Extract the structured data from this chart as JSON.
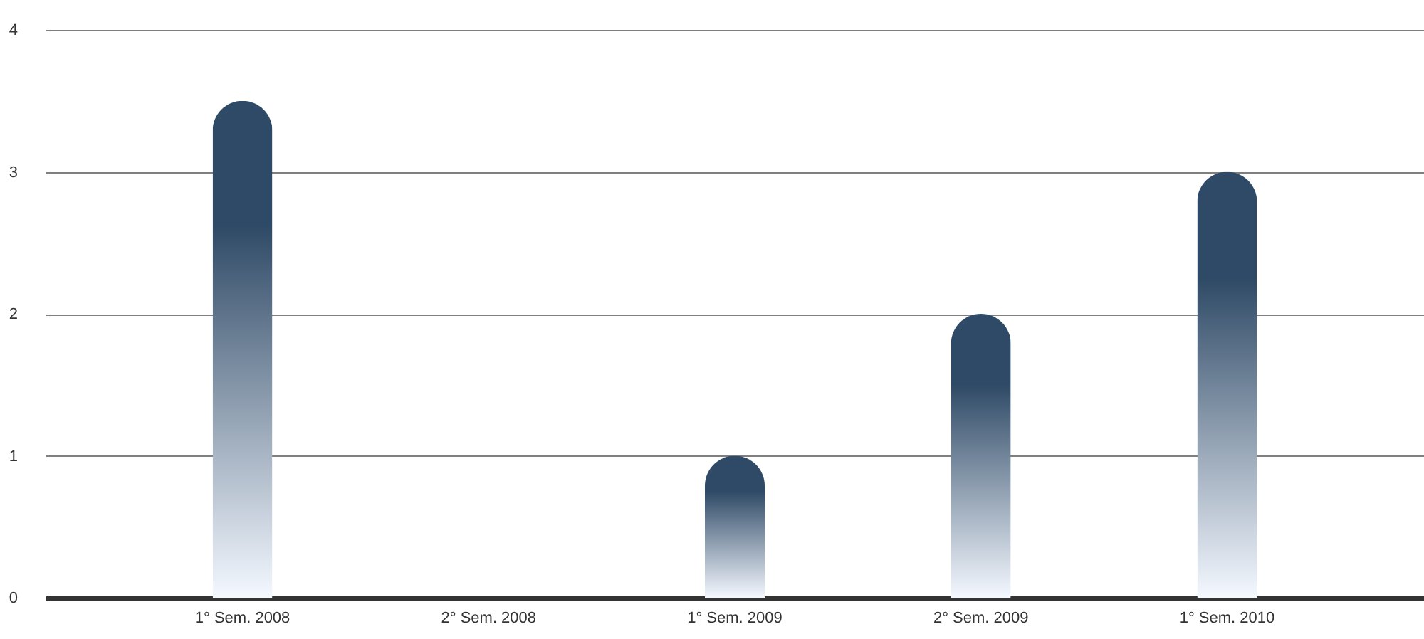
{
  "chart_data": {
    "type": "bar",
    "categories": [
      "1° Sem. 2008",
      "2° Sem. 2008",
      "1° Sem. 2009",
      "2° Sem. 2009",
      "1° Sem. 2010"
    ],
    "values": [
      3.5,
      0,
      1,
      2,
      3
    ],
    "color": "#2f4a66",
    "ylim": [
      0,
      4
    ],
    "yticks": [
      0,
      1,
      2,
      3,
      4
    ],
    "grid": "y"
  }
}
